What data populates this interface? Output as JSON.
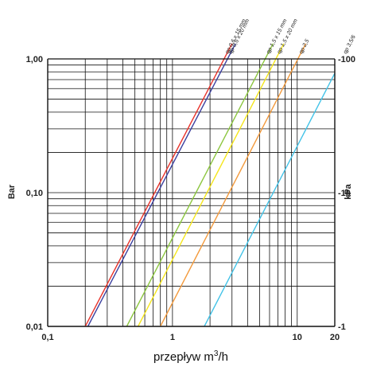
{
  "chart_data": {
    "type": "line",
    "title": "",
    "xlabel": "przepływ m",
    "xlabel_sup": "3",
    "xlabel_suffix": "/h",
    "ylabel_left": "Bar",
    "ylabel_right": "kPa",
    "x_scale": "log",
    "y_scale": "log",
    "xlim": [
      0.1,
      20
    ],
    "ylim": [
      0.01,
      1.0
    ],
    "x_ticks": [
      {
        "value": 0.1,
        "label": "0,1"
      },
      {
        "value": 1,
        "label": "1"
      },
      {
        "value": 10,
        "label": "10"
      },
      {
        "value": 20,
        "label": "20"
      }
    ],
    "y_ticks_left": [
      {
        "value": 0.01,
        "label": "0,01"
      },
      {
        "value": 0.1,
        "label": "0,10"
      },
      {
        "value": 1.0,
        "label": "1,00"
      }
    ],
    "y_ticks_right": [
      {
        "value": 0.01,
        "label": "-1"
      },
      {
        "value": 0.1,
        "label": "-10"
      },
      {
        "value": 1.0,
        "label": "-100"
      }
    ],
    "x_gridlines": [
      0.2,
      0.3,
      0.4,
      0.5,
      0.6,
      0.7,
      0.8,
      0.9,
      1,
      2,
      3,
      4,
      5,
      6,
      7,
      8,
      9,
      10,
      20
    ],
    "y_gridlines": [
      0.02,
      0.03,
      0.04,
      0.05,
      0.06,
      0.07,
      0.08,
      0.09,
      0.1,
      0.2,
      0.3,
      0.4,
      0.5,
      0.6,
      0.7,
      0.8,
      0.9,
      1.0
    ],
    "grid": true,
    "series": [
      {
        "name": "qp 0,6 x 15 mm",
        "color": "#e8332b",
        "x": [
          0.2,
          3.0
        ],
        "y": [
          0.01,
          1.3
        ]
      },
      {
        "name": "qp 0,6 x 20 mm",
        "color": "#3b3f9e",
        "x": [
          0.21,
          3.2
        ],
        "y": [
          0.01,
          1.3
        ]
      },
      {
        "name": "qp 1,5 x 15 mm",
        "color": "#8cc63f",
        "x": [
          0.43,
          6.4
        ],
        "y": [
          0.01,
          1.3
        ]
      },
      {
        "name": "qp 1,5 x 20 mm",
        "color": "#f5e61c",
        "x": [
          0.53,
          7.8
        ],
        "y": [
          0.01,
          1.3
        ]
      },
      {
        "name": "qp 2,5",
        "color": "#f39a3c",
        "x": [
          0.8,
          11.7
        ],
        "y": [
          0.01,
          1.3
        ]
      },
      {
        "name": "qp 3,5/6",
        "color": "#43c3e8",
        "x": [
          1.8,
          26.5
        ],
        "y": [
          0.01,
          1.3
        ]
      }
    ]
  }
}
